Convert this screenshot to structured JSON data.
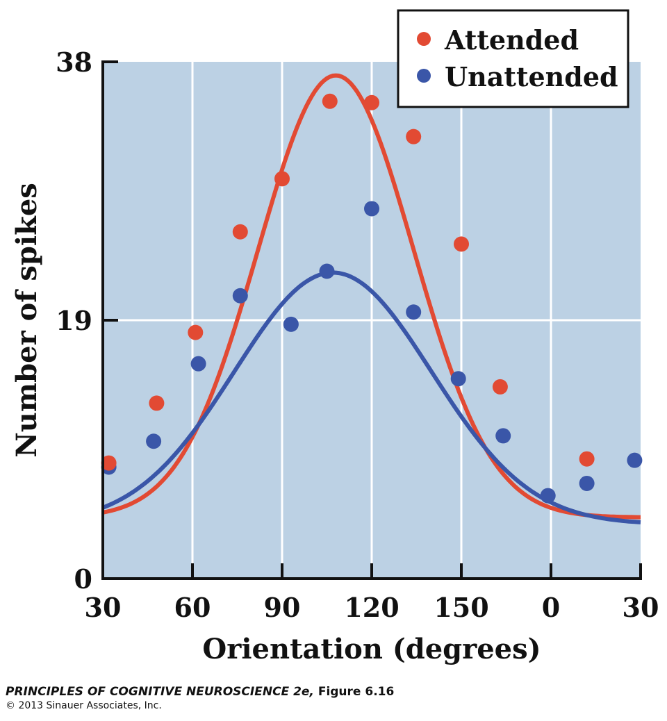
{
  "colors": {
    "attended": "#e24a33",
    "unattended": "#3a56a8",
    "plot_bg": "#bcd1e4",
    "grid": "#ffffff",
    "axis": "#111111"
  },
  "chart_data": {
    "type": "scatter",
    "title": "",
    "xlabel": "Orientation (degrees)",
    "ylabel": "Number of spikes",
    "x_ticks": [
      "30",
      "60",
      "90",
      "120",
      "150",
      "0",
      "30"
    ],
    "x_tick_values_unwrapped": [
      30,
      60,
      90,
      120,
      150,
      180,
      210
    ],
    "y_ticks": [
      "0",
      "19",
      "38"
    ],
    "xlim": [
      30,
      210
    ],
    "ylim": [
      0,
      38
    ],
    "grid": true,
    "legend_position": "top-right",
    "series": [
      {
        "name": "Attended",
        "points": [
          [
            32,
            8.5
          ],
          [
            48,
            12.9
          ],
          [
            61,
            18.1
          ],
          [
            76,
            25.5
          ],
          [
            90,
            29.4
          ],
          [
            106,
            35.1
          ],
          [
            120,
            35.0
          ],
          [
            134,
            32.5
          ],
          [
            150,
            24.6
          ],
          [
            163,
            14.1
          ],
          [
            192,
            8.8
          ]
        ],
        "fit": {
          "type": "gaussian",
          "baseline": 4.5,
          "amplitude": 32.5,
          "center": 108,
          "sigma": 26
        }
      },
      {
        "name": "Unattended",
        "points": [
          [
            32,
            8.2
          ],
          [
            47,
            10.1
          ],
          [
            62,
            15.8
          ],
          [
            76,
            20.8
          ],
          [
            93,
            18.7
          ],
          [
            105,
            22.6
          ],
          [
            120,
            27.2
          ],
          [
            134,
            19.6
          ],
          [
            149,
            14.7
          ],
          [
            164,
            10.5
          ],
          [
            179,
            6.1
          ],
          [
            192,
            7.0
          ],
          [
            208,
            8.7
          ]
        ],
        "fit": {
          "type": "gaussian",
          "baseline": 4.0,
          "amplitude": 18.5,
          "center": 107,
          "sigma": 33
        }
      }
    ]
  },
  "caption": {
    "book": "PRINCIPLES OF COGNITIVE NEUROSCIENCE 2e,",
    "figure": " Figure 6.16",
    "copyright": "© 2013 Sinauer Associates, Inc."
  }
}
